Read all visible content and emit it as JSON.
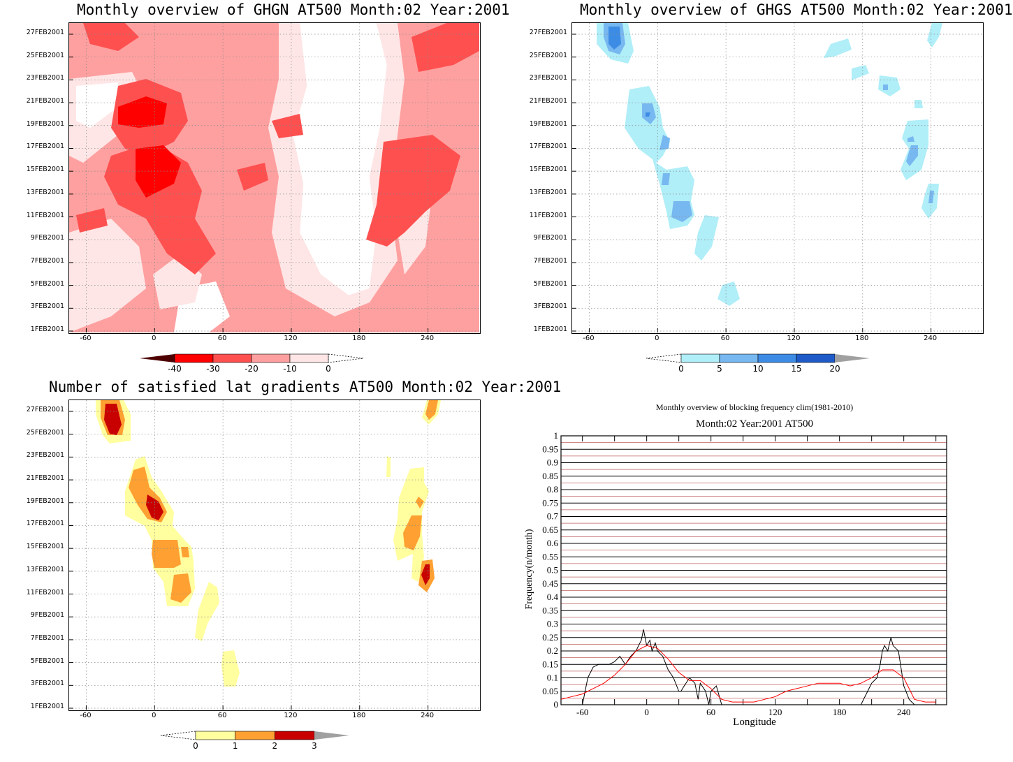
{
  "chart_data": [
    {
      "type": "heatmap",
      "title": "Monthly overview of GHGN AT500 Month:02 Year:2001",
      "x_ticks": [
        "-60",
        "0",
        "60",
        "120",
        "180",
        "240"
      ],
      "y_ticks": [
        "1FEB2001",
        "3FEB2001",
        "5FEB2001",
        "7FEB2001",
        "9FEB2001",
        "11FEB2001",
        "13FEB2001",
        "15FEB2001",
        "17FEB2001",
        "19FEB2001",
        "21FEB2001",
        "23FEB2001",
        "25FEB2001",
        "27FEB2001"
      ],
      "xlim": [
        -75,
        285
      ],
      "colorbar": {
        "levels": [
          "-40",
          "-30",
          "-20",
          "-10",
          "0"
        ],
        "colors": [
          "#4d0000",
          "#ff0000",
          "#ff5050",
          "#ffa0a0",
          "#ffe6e6",
          "#ffffff"
        ]
      }
    },
    {
      "type": "heatmap",
      "title": "Monthly overview of GHGS AT500 Month:02 Year:2001",
      "x_ticks": [
        "-60",
        "0",
        "60",
        "120",
        "180",
        "240"
      ],
      "y_ticks": [
        "1FEB2001",
        "3FEB2001",
        "5FEB2001",
        "7FEB2001",
        "9FEB2001",
        "11FEB2001",
        "13FEB2001",
        "15FEB2001",
        "17FEB2001",
        "19FEB2001",
        "21FEB2001",
        "23FEB2001",
        "25FEB2001",
        "27FEB2001"
      ],
      "xlim": [
        -75,
        285
      ],
      "colorbar": {
        "levels": [
          "0",
          "5",
          "10",
          "15",
          "20"
        ],
        "colors": [
          "#ffffff",
          "#b0eef8",
          "#78b8f0",
          "#3c8ce6",
          "#1e5ac8",
          "#a0a0a0"
        ]
      }
    },
    {
      "type": "heatmap",
      "title": "Number of satisfied lat gradients AT500 Month:02 Year:2001",
      "x_ticks": [
        "-60",
        "0",
        "60",
        "120",
        "180",
        "240"
      ],
      "y_ticks": [
        "1FEB2001",
        "3FEB2001",
        "5FEB2001",
        "7FEB2001",
        "9FEB2001",
        "11FEB2001",
        "13FEB2001",
        "15FEB2001",
        "17FEB2001",
        "19FEB2001",
        "21FEB2001",
        "23FEB2001",
        "25FEB2001",
        "27FEB2001"
      ],
      "xlim": [
        -75,
        285
      ],
      "colorbar": {
        "levels": [
          "0",
          "1",
          "2",
          "3"
        ],
        "colors": [
          "#ffffff",
          "#ffffa0",
          "#ffa032",
          "#c80000",
          "#a0a0a0"
        ]
      }
    },
    {
      "type": "line",
      "title": "Monthly overview of blocking frequency clim(1981-2010)",
      "subtitle": "Month:02 Year:2001  AT500",
      "xlabel": "Longitude",
      "ylabel": "Frequency(n/month)",
      "xlim": [
        -80,
        280
      ],
      "ylim": [
        0,
        1
      ],
      "x_ticks": [
        "-60",
        "0",
        "60",
        "120",
        "180",
        "240"
      ],
      "y_ticks": [
        "0",
        "0.05",
        "0.1",
        "0.15",
        "0.2",
        "0.25",
        "0.3",
        "0.35",
        "0.4",
        "0.45",
        "0.5",
        "0.55",
        "0.6",
        "0.65",
        "0.7",
        "0.75",
        "0.8",
        "0.85",
        "0.9",
        "0.95",
        "1"
      ],
      "series": [
        {
          "color": "#000000",
          "x": [
            -60,
            -55,
            -50,
            -45,
            -40,
            -35,
            -30,
            -25,
            -20,
            -15,
            -10,
            -5,
            -3,
            0,
            3,
            5,
            8,
            10,
            15,
            20,
            25,
            30,
            32,
            35,
            40,
            45,
            48,
            50,
            55,
            58,
            60,
            65,
            70,
            75,
            200,
            205,
            210,
            215,
            218,
            220,
            222,
            225,
            228,
            230,
            235,
            240,
            245,
            250
          ],
          "y": [
            0,
            0.1,
            0.14,
            0.15,
            0.15,
            0.15,
            0.16,
            0.18,
            0.15,
            0.18,
            0.2,
            0.24,
            0.28,
            0.22,
            0.24,
            0.2,
            0.23,
            0.2,
            0.18,
            0.13,
            0.1,
            0.05,
            0.05,
            0.07,
            0.1,
            0.08,
            0.02,
            0.08,
            0.05,
            0,
            0.05,
            0.07,
            0,
            0,
            0,
            0.04,
            0.08,
            0.1,
            0.15,
            0.2,
            0.22,
            0.2,
            0.25,
            0.22,
            0.2,
            0.07,
            0.02,
            0
          ]
        },
        {
          "color": "#ff0000",
          "x": [
            -80,
            -70,
            -60,
            -50,
            -40,
            -30,
            -20,
            -10,
            0,
            10,
            20,
            30,
            40,
            50,
            60,
            70,
            80,
            90,
            100,
            110,
            120,
            130,
            140,
            150,
            160,
            170,
            180,
            190,
            200,
            210,
            220,
            230,
            240,
            250,
            260,
            270
          ],
          "y": [
            0.02,
            0.03,
            0.04,
            0.06,
            0.08,
            0.11,
            0.15,
            0.2,
            0.22,
            0.21,
            0.17,
            0.12,
            0.09,
            0.09,
            0.06,
            0.02,
            0.01,
            0.01,
            0.01,
            0.02,
            0.03,
            0.05,
            0.06,
            0.07,
            0.08,
            0.08,
            0.08,
            0.07,
            0.08,
            0.1,
            0.13,
            0.13,
            0.1,
            0.02,
            0.01,
            0.01
          ]
        }
      ]
    }
  ]
}
